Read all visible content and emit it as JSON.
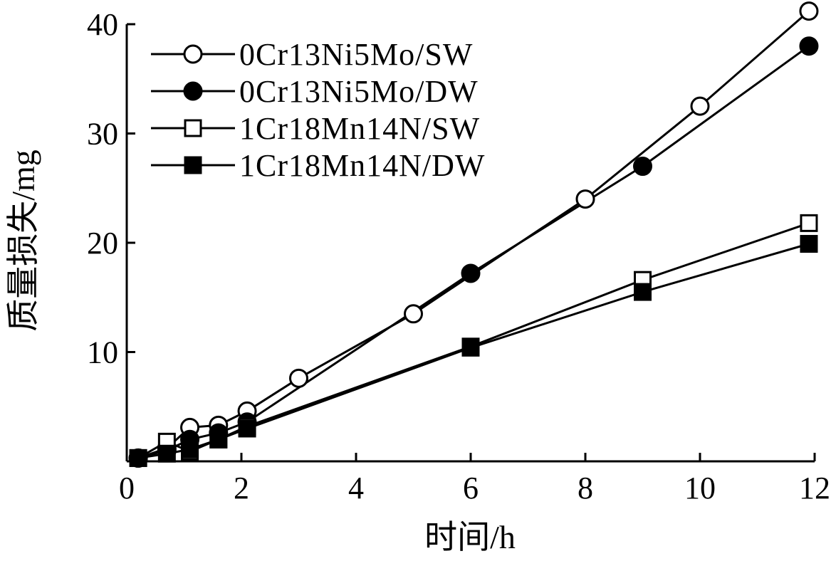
{
  "chart_data": {
    "type": "line",
    "xlabel": "时间/h",
    "ylabel": "质量损失/mg",
    "xlim": [
      0,
      12
    ],
    "ylim": [
      0,
      40
    ],
    "xticks": [
      0,
      2,
      4,
      6,
      8,
      10,
      12
    ],
    "yticks": [
      10,
      20,
      30,
      40
    ],
    "xtick_labels": [
      "0",
      "2",
      "4",
      "6",
      "8",
      "10",
      "12"
    ],
    "ytick_labels": [
      "10",
      "20",
      "30",
      "40"
    ],
    "grid": false,
    "legend_position": "top-left",
    "series": [
      {
        "name": "0Cr13Ni5Mo/SW",
        "marker": "open-circle",
        "color": "#000000",
        "points": [
          [
            0.2,
            0.3
          ],
          [
            0.7,
            1.2
          ],
          [
            1.1,
            3.1
          ],
          [
            1.6,
            3.3
          ],
          [
            2.1,
            4.6
          ],
          [
            3.0,
            7.6
          ],
          [
            5.0,
            13.5
          ],
          [
            8.0,
            24.0
          ],
          [
            10.0,
            32.5
          ],
          [
            11.9,
            41.2
          ]
        ]
      },
      {
        "name": "0Cr13Ni5Mo/DW",
        "marker": "filled-circle",
        "color": "#000000",
        "points": [
          [
            0.2,
            0.3
          ],
          [
            0.7,
            1.0
          ],
          [
            1.1,
            2.0
          ],
          [
            1.6,
            2.6
          ],
          [
            2.1,
            3.6
          ],
          [
            6.0,
            17.2
          ],
          [
            9.0,
            27.0
          ],
          [
            11.9,
            38.0
          ]
        ]
      },
      {
        "name": "1Cr18Mn14N/SW",
        "marker": "open-square",
        "color": "#000000",
        "points": [
          [
            0.2,
            0.3
          ],
          [
            0.7,
            1.8
          ],
          [
            1.1,
            0.9
          ],
          [
            1.6,
            2.0
          ],
          [
            2.1,
            3.2
          ],
          [
            6.0,
            10.5
          ],
          [
            9.0,
            16.6
          ],
          [
            11.9,
            21.8
          ]
        ]
      },
      {
        "name": "1Cr18Mn14N/DW",
        "marker": "filled-square",
        "color": "#000000",
        "points": [
          [
            0.2,
            0.3
          ],
          [
            0.7,
            0.7
          ],
          [
            1.1,
            1.1
          ],
          [
            1.6,
            2.0
          ],
          [
            2.1,
            3.0
          ],
          [
            6.0,
            10.4
          ],
          [
            9.0,
            15.5
          ],
          [
            11.9,
            19.9
          ]
        ]
      }
    ]
  }
}
